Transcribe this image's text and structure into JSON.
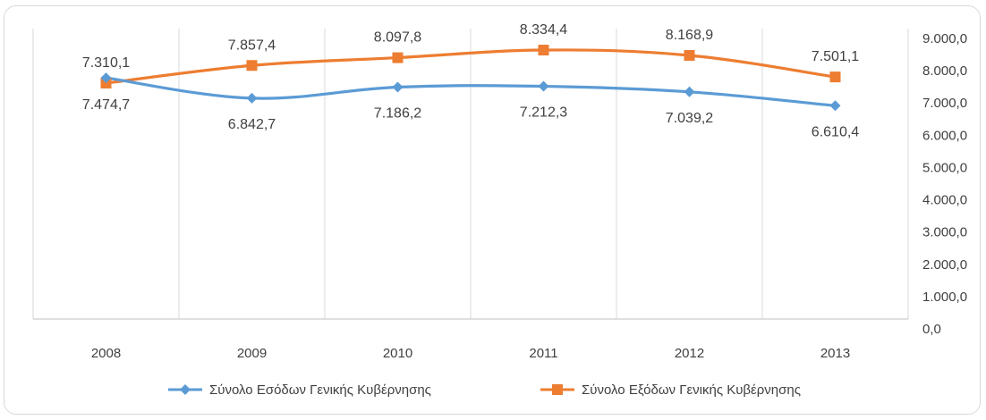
{
  "chart_data": {
    "type": "line",
    "categories": [
      "2008",
      "2009",
      "2010",
      "2011",
      "2012",
      "2013"
    ],
    "series": [
      {
        "name": "Σύνολο Εσόδων Γενικής Κυβέρνησης",
        "values": [
          7474.7,
          6842.7,
          7186.2,
          7212.3,
          7039.2,
          6610.4
        ],
        "labels": [
          "7.474,7",
          "6.842,7",
          "7.186,2",
          "7.212,3",
          "7.039,2",
          "6.610,4"
        ],
        "color": "#5B9BD5",
        "marker": "diamond"
      },
      {
        "name": "Σύνολο Εξόδων Γενικής Κυβέρνησης",
        "values": [
          7310.1,
          7857.4,
          8097.8,
          8334.4,
          8168.9,
          7501.1
        ],
        "labels": [
          "7.310,1",
          "7.857,4",
          "8.097,8",
          "8.334,4",
          "8.168,9",
          "7.501,1"
        ],
        "color": "#ED7D31",
        "marker": "square"
      }
    ],
    "y_ticks": [
      "0,0",
      "1.000,0",
      "2.000,0",
      "3.000,0",
      "4.000,0",
      "5.000,0",
      "6.000,0",
      "7.000,0",
      "8.000,0",
      "9.000,0"
    ],
    "ylim": [
      0,
      9000
    ],
    "y_axis_position": "right",
    "smooth": true,
    "grid": "vertical",
    "legend_position": "bottom"
  }
}
